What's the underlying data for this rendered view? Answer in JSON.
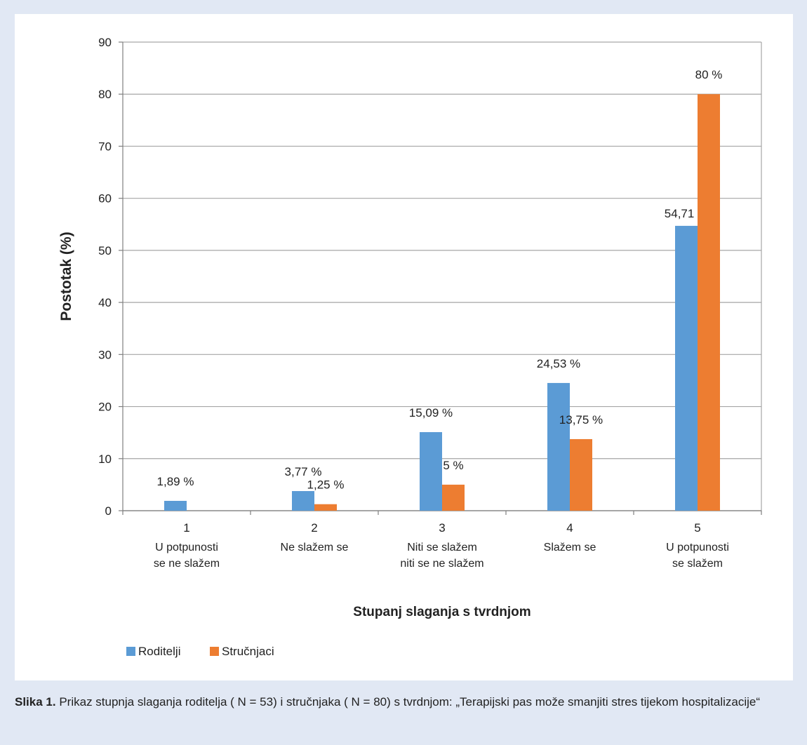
{
  "chart_data": {
    "type": "bar",
    "ylabel": "Postotak (%)",
    "xlabel": "Stupanj slaganja s tvrdnjom",
    "ylim": [
      0,
      90
    ],
    "yticks": [
      0,
      10,
      20,
      30,
      40,
      50,
      60,
      70,
      80,
      90
    ],
    "grid": true,
    "legend_position": "bottom-left",
    "categories": [
      {
        "number": "1",
        "label_lines": [
          "U potpunosti",
          "se ne slažem"
        ]
      },
      {
        "number": "2",
        "label_lines": [
          "Ne slažem se"
        ]
      },
      {
        "number": "3",
        "label_lines": [
          "Niti se slažem",
          "niti se ne slažem"
        ]
      },
      {
        "number": "4",
        "label_lines": [
          "Slažem se"
        ]
      },
      {
        "number": "5",
        "label_lines": [
          "U potpunosti",
          "se slažem"
        ]
      }
    ],
    "series": [
      {
        "name": "Roditelji",
        "color": "#5b9bd5",
        "values": [
          1.89,
          3.77,
          15.09,
          24.53,
          54.71
        ],
        "value_labels": [
          "1,89 %",
          "3,77 %",
          "15,09 %",
          "24,53 %",
          "54,71 %"
        ]
      },
      {
        "name": "Stručnjaci",
        "color": "#ed7d31",
        "values": [
          0,
          1.25,
          5,
          13.75,
          80
        ],
        "value_labels": [
          "",
          "1,25 %",
          "5 %",
          "13,75 %",
          "80 %"
        ]
      }
    ]
  },
  "caption": {
    "prefix": "Slika 1.",
    "text": "Prikaz stupnja slaganja roditelja ( N = 53) i stručnjaka ( N = 80) s tvrdnjom: „Terapijski pas može smanjiti stres tijekom hospitalizacije“"
  }
}
